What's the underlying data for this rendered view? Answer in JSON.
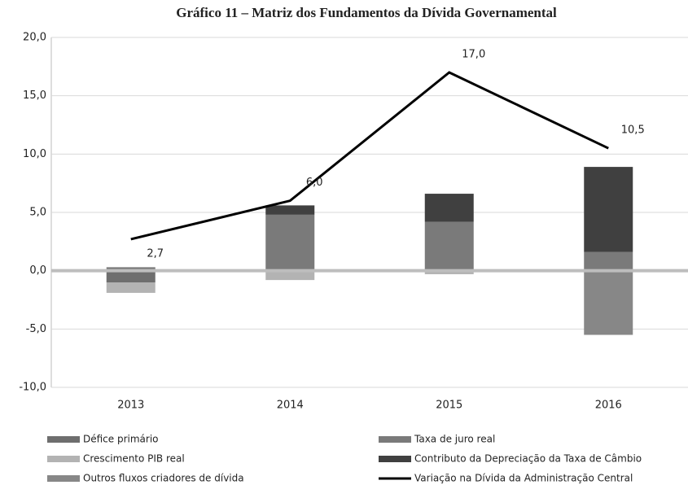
{
  "chart_data": {
    "type": "stacked-bar-line",
    "title": "Gráfico 11 – Matriz dos Fundamentos da Dívida Governamental",
    "categories": [
      "2013",
      "2014",
      "2015",
      "2016"
    ],
    "series": [
      {
        "name": "Défice primário",
        "color": "#6e6e6e",
        "values": [
          -1.0,
          0,
          0,
          0
        ]
      },
      {
        "name": "Taxa de juro real",
        "color": "#7a7a7a",
        "values": [
          0.3,
          4.8,
          4.2,
          1.6
        ]
      },
      {
        "name": "Crescimento PIB real",
        "color": "#b3b3b3",
        "values": [
          -0.9,
          -0.8,
          -0.3,
          0
        ]
      },
      {
        "name": "Contributo da Depreciação da Taxa de Câmbio",
        "color": "#404040",
        "values": [
          0,
          0.8,
          2.4,
          7.3
        ]
      },
      {
        "name": "Outros fluxos criadores de dívida",
        "color": "#878787",
        "values": [
          0,
          0,
          0,
          -5.5
        ]
      },
      {
        "name": "Variação na Dívida da Administração Central",
        "color": "#000000",
        "type": "line",
        "values": [
          2.7,
          6.0,
          17.0,
          10.5
        ],
        "value_labels": [
          "2,7",
          "6,0",
          "17,0",
          "10,5"
        ]
      }
    ],
    "ylim": [
      -10,
      20
    ],
    "yticks": [
      {
        "value": -10,
        "label": "-10,0"
      },
      {
        "value": -5,
        "label": "-5,0"
      },
      {
        "value": 0,
        "label": "0,0"
      },
      {
        "value": 5,
        "label": "5,0"
      },
      {
        "value": 10,
        "label": "10,0"
      },
      {
        "value": 15,
        "label": "15,0"
      },
      {
        "value": 20,
        "label": "20,0"
      }
    ],
    "grid": true
  }
}
